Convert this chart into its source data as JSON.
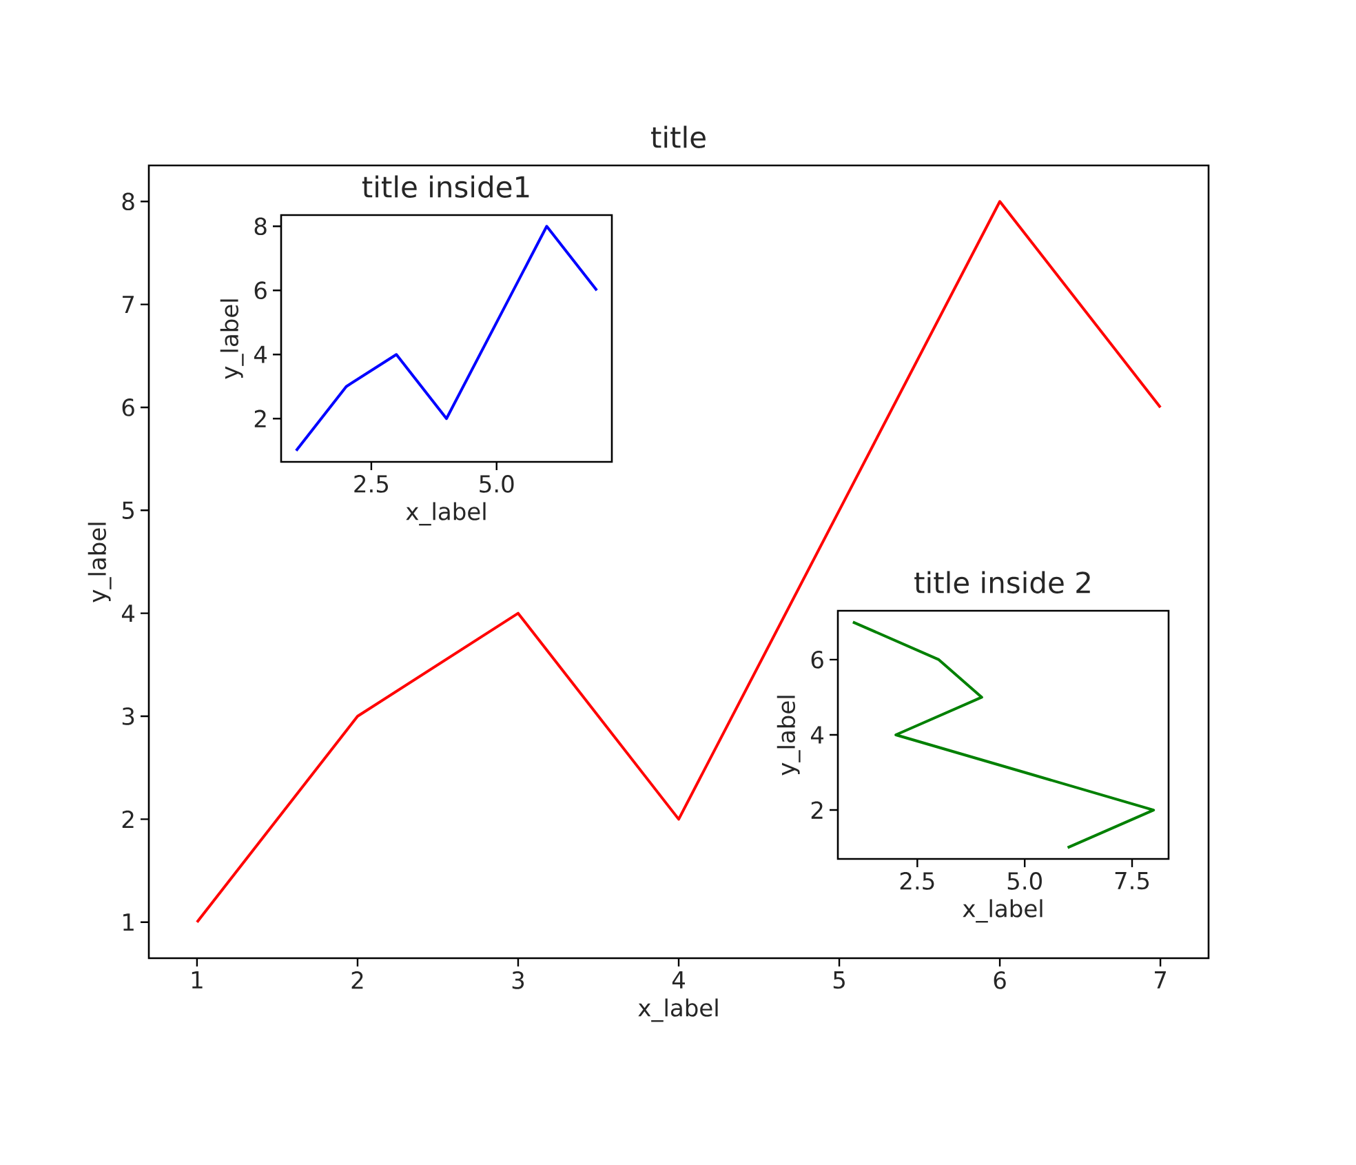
{
  "chart_data": [
    {
      "type": "line",
      "title": "title",
      "xlabel": "x_label",
      "ylabel": "y_label",
      "x": [
        1,
        2,
        3,
        4,
        5,
        6,
        7
      ],
      "series": [
        {
          "color": "#ff0000",
          "values": [
            1,
            3,
            4,
            2,
            5,
            8,
            6
          ]
        }
      ],
      "xlim": [
        0.7,
        7.3
      ],
      "ylim": [
        0.65,
        8.35
      ],
      "xticks": [
        1,
        2,
        3,
        4,
        5,
        6,
        7
      ],
      "yticks": [
        1,
        2,
        3,
        4,
        5,
        6,
        7,
        8
      ]
    },
    {
      "type": "line",
      "title": "title inside1",
      "xlabel": "x_label",
      "ylabel": "y_label",
      "x": [
        1,
        2,
        3,
        4,
        5,
        6,
        7
      ],
      "series": [
        {
          "color": "#0000ff",
          "values": [
            1,
            3,
            4,
            2,
            5,
            8,
            6
          ]
        }
      ],
      "xlim": [
        0.7,
        7.3
      ],
      "ylim": [
        0.65,
        8.35
      ],
      "xticks": [
        2.5,
        {
          "value": 5,
          "label": "5.0"
        }
      ],
      "yticks": [
        2,
        4,
        6,
        8
      ]
    },
    {
      "type": "line",
      "title": "title inside 2",
      "xlabel": "x_label",
      "ylabel": "y_label",
      "x": [
        6,
        8,
        5,
        2,
        4,
        3,
        1
      ],
      "series": [
        {
          "color": "#008000",
          "values": [
            1,
            2,
            3,
            4,
            5,
            6,
            7
          ]
        }
      ],
      "xlim": [
        0.65,
        8.35
      ],
      "ylim": [
        0.7,
        7.3
      ],
      "xticks": [
        2.5,
        {
          "value": 5,
          "label": "5.0"
        },
        7.5
      ],
      "yticks": [
        2,
        4,
        6
      ]
    }
  ]
}
